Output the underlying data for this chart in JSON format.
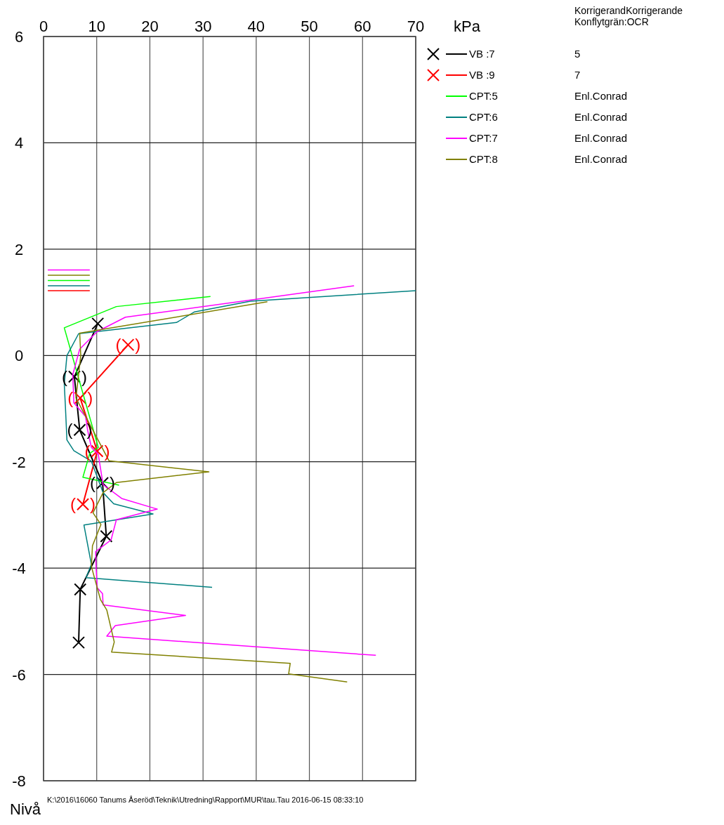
{
  "chart_data": {
    "type": "line",
    "xlabel": "kPa",
    "ylabel": "Nivå",
    "xlim": [
      0,
      70
    ],
    "xticks": [
      0,
      10,
      20,
      30,
      40,
      50,
      60,
      70
    ],
    "ylim": [
      -8,
      6
    ],
    "yticks": [
      -8,
      -6,
      -4,
      -2,
      0,
      2,
      4,
      6
    ],
    "grid": true,
    "legend": "right",
    "line_style": "solid",
    "series": [
      {
        "name": "VB :7",
        "color": "#000000",
        "marker": "cross",
        "x": [
          10.2,
          5.8,
          6.8,
          11.1,
          11.8,
          6.9,
          6.6
        ],
        "values": [
          0.6,
          -0.4,
          -1.4,
          -2.4,
          -3.4,
          -4.4,
          -5.4
        ]
      },
      {
        "name": "VB :9",
        "color": "#ff0000",
        "marker": "cross",
        "x": [
          15.9,
          6.9,
          10.1,
          7.4
        ],
        "values": [
          0.2,
          -0.8,
          -1.8,
          -2.8
        ]
      },
      {
        "name": "CPT:5",
        "color": "#00ff00",
        "marker": "none",
        "x": [
          31.4,
          13.7,
          3.9,
          10.3,
          8.7,
          7.4,
          14.2
        ],
        "values": [
          1.11,
          0.92,
          0.52,
          -1.73,
          -1.84,
          -2.29,
          -2.44
        ]
      },
      {
        "name": "CPT:6",
        "color": "#008080",
        "marker": "none",
        "x": [
          70,
          38.9,
          28.4,
          25.0,
          6.6,
          4.4,
          3.9,
          4.1,
          4.4,
          5.7,
          9.0,
          11.2,
          13.2,
          20.6,
          7.6,
          9.0,
          8.0,
          31.7
        ],
        "values": [
          1.22,
          1.02,
          0.82,
          0.62,
          0.41,
          0.0,
          -0.54,
          -0.93,
          -1.59,
          -1.79,
          -1.99,
          -2.58,
          -2.79,
          -2.98,
          -3.19,
          -3.93,
          -4.18,
          -4.36
        ]
      },
      {
        "name": "CPT:7",
        "color": "#ff00ff",
        "marker": "none",
        "x": [
          58.4,
          15.4,
          10.1,
          6.8,
          5.5,
          5.7,
          7.9,
          8.3,
          9.0,
          10.3,
          11.2,
          14.7,
          21.4,
          13.7,
          12.7,
          9.8,
          9.9,
          10.1,
          11.1,
          11.2,
          26.7,
          13.5,
          11.9,
          62.5
        ],
        "values": [
          1.31,
          0.72,
          0.45,
          0.12,
          -0.36,
          -0.89,
          -1.15,
          -1.41,
          -1.73,
          -1.86,
          -2.43,
          -2.69,
          -2.89,
          -3.09,
          -3.47,
          -3.69,
          -4.02,
          -4.37,
          -4.48,
          -4.69,
          -4.89,
          -5.08,
          -5.28,
          -5.64
        ]
      },
      {
        "name": "CPT:8",
        "color": "#808000",
        "marker": "none",
        "x": [
          42.1,
          6.8,
          7.0,
          6.3,
          6.1,
          12.3,
          31.1,
          13.7,
          11.2,
          9.3,
          10.8,
          9.2,
          9.0,
          10.7,
          11.9,
          13.3,
          12.8,
          46.4,
          46.1,
          57.1
        ],
        "values": [
          1.01,
          0.42,
          0.0,
          -0.62,
          -0.8,
          -1.98,
          -2.19,
          -2.39,
          -2.58,
          -2.96,
          -3.18,
          -3.58,
          -3.97,
          -4.59,
          -4.79,
          -5.39,
          -5.58,
          -5.79,
          -5.99,
          -6.14
        ]
      },
      {
        "color": "#ff00ff",
        "marker": "none",
        "x": [
          0.8,
          8.7
        ],
        "values": [
          1.61,
          1.61
        ]
      },
      {
        "color": "#808000",
        "marker": "none",
        "x": [
          0.8,
          8.7
        ],
        "values": [
          1.51,
          1.51
        ]
      },
      {
        "color": "#00ff00",
        "marker": "none",
        "x": [
          0.8,
          8.7
        ],
        "values": [
          1.41,
          1.41
        ]
      },
      {
        "color": "#008080",
        "marker": "none",
        "x": [
          0.8,
          8.7
        ],
        "values": [
          1.31,
          1.31
        ]
      },
      {
        "color": "#ff0000",
        "marker": "none",
        "x": [
          0.8,
          8.7
        ],
        "values": [
          1.22,
          1.22
        ]
      }
    ],
    "annotations": [
      "KorrigerandKorrigerande",
      "Konflytgrän:OCR",
      "5",
      "7",
      "Enl.Conrad",
      "Enl.Conrad",
      "Enl.Conrad",
      "Enl.Conrad",
      "K:\\2016\\16060 Tanums Åseröd\\Teknik\\Utredning\\Rapport\\MUR\\tau.Tau 2016-06-15 08:33:10",
      {
        "text": "(   )",
        "x": 5.8,
        "y": -0.4
      },
      {
        "text": "(   )",
        "x": 6.8,
        "y": -1.4
      },
      {
        "text": "(   )",
        "x": 11.1,
        "y": -2.4
      },
      {
        "text": "(   )",
        "x": 15.9,
        "y": 0.2
      },
      {
        "text": "(   )",
        "x": 6.9,
        "y": -0.8
      },
      {
        "text": "(   )",
        "x": 10.1,
        "y": -1.8
      },
      {
        "text": "(   )",
        "x": 7.4,
        "y": -2.8
      }
    ]
  }
}
